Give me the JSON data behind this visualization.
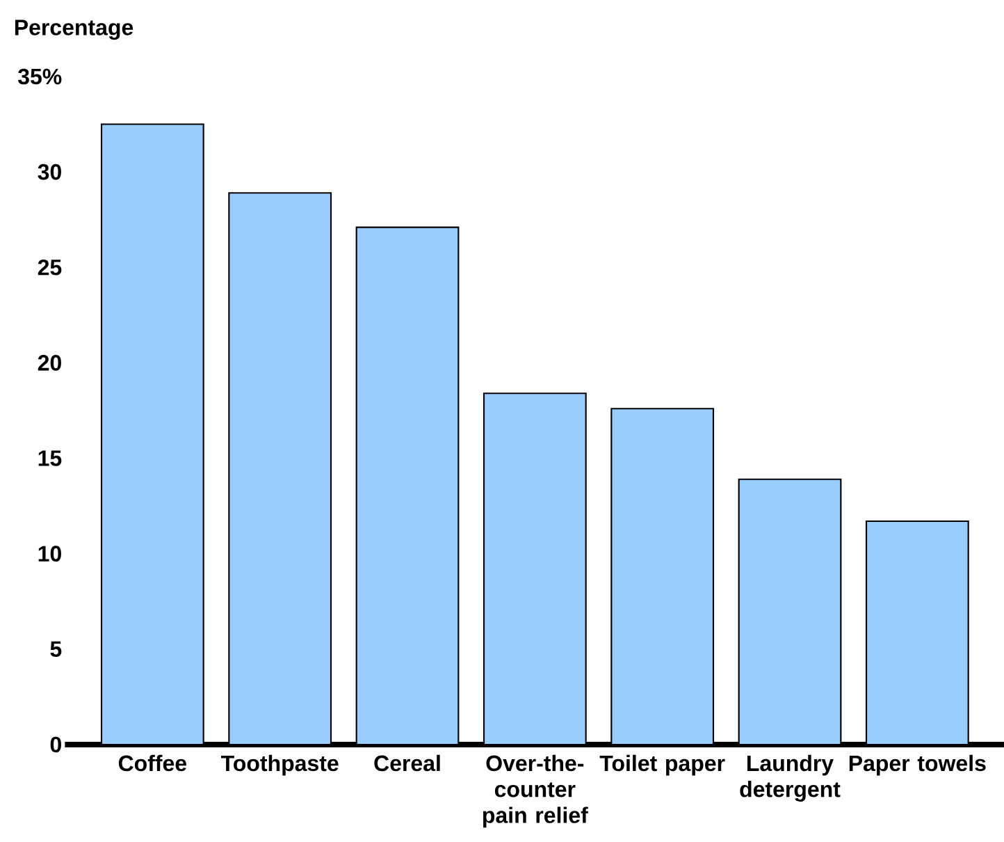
{
  "chart_data": {
    "type": "bar",
    "ylabel": "Percentage",
    "categories": [
      "Coffee",
      "Toothpaste",
      "Cereal",
      "Over-the-counter pain relief",
      "Toilet paper",
      "Laundry detergent",
      "Paper towels"
    ],
    "values": [
      32.5,
      28.9,
      27.1,
      18.4,
      17.6,
      13.9,
      11.7
    ],
    "color": "#99ccff",
    "ylim": [
      0,
      35
    ],
    "yticks": [
      0,
      5,
      10,
      15,
      20,
      25,
      30,
      {
        "value": 35,
        "label": "35%"
      }
    ],
    "grid": false
  }
}
